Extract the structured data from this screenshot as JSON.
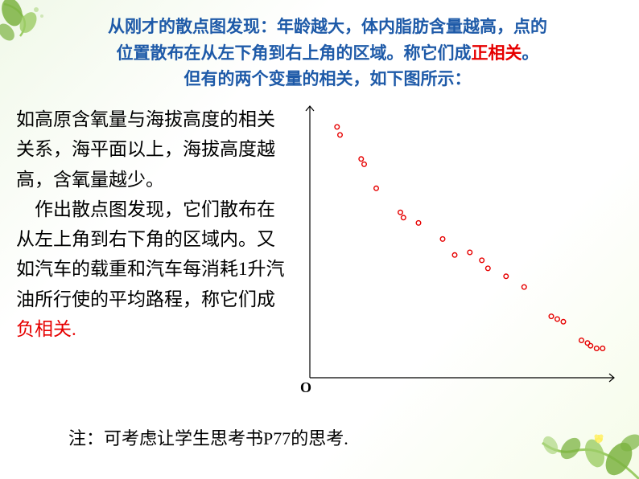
{
  "title": {
    "line1_a": "从刚才的散点图发现：年龄越大，体内脂肪含量越高，点的",
    "line2_a": "位置散布在从左下角到右上角的区域。称它们成",
    "line2_red": "正相关",
    "line2_b": "。",
    "line3": "但有的两个变量的相关，如下图所示：",
    "title_color": "#1e5aa8",
    "title_fontsize": 21
  },
  "body": {
    "para1": "如高原含氧量与海拔高度的相关关系，海平面以上，海拔高度越高，含氧量越少。",
    "para2_a": "　作出散点图发现，它们散布在从左上角到右下角的区域内。又如汽车的载重和汽车每消耗1升汽油所行使的平均路程，称它们成",
    "para2_red": "负相关.",
    "body_fontsize": 23,
    "body_color": "#000000"
  },
  "footnote": {
    "text": "注：可考虑让学生思考书P77的思考.",
    "fontsize": 22,
    "color": "#000000"
  },
  "chart": {
    "type": "scatter",
    "origin_label": "O",
    "axis_color": "#000000",
    "point_color": "#e60000",
    "point_radius": 2.8,
    "background_color": "#ffffff",
    "xlim": [
      0,
      100
    ],
    "ylim": [
      0,
      100
    ],
    "points": [
      [
        9,
        94
      ],
      [
        10,
        91
      ],
      [
        17,
        82
      ],
      [
        18,
        80
      ],
      [
        22,
        71
      ],
      [
        30,
        62
      ],
      [
        31,
        60
      ],
      [
        36,
        58
      ],
      [
        44,
        52
      ],
      [
        48,
        46
      ],
      [
        53,
        47
      ],
      [
        57,
        44
      ],
      [
        59,
        41
      ],
      [
        65,
        38
      ],
      [
        71,
        34
      ],
      [
        80,
        23
      ],
      [
        82,
        22
      ],
      [
        84,
        21
      ],
      [
        90,
        14
      ],
      [
        92,
        13
      ],
      [
        93,
        12
      ],
      [
        95,
        11
      ],
      [
        97,
        11
      ]
    ]
  },
  "decor": {
    "leaf_green": "#7cb342",
    "vine_green": "#9ccc65",
    "flower_color": "#ffeb3b"
  }
}
